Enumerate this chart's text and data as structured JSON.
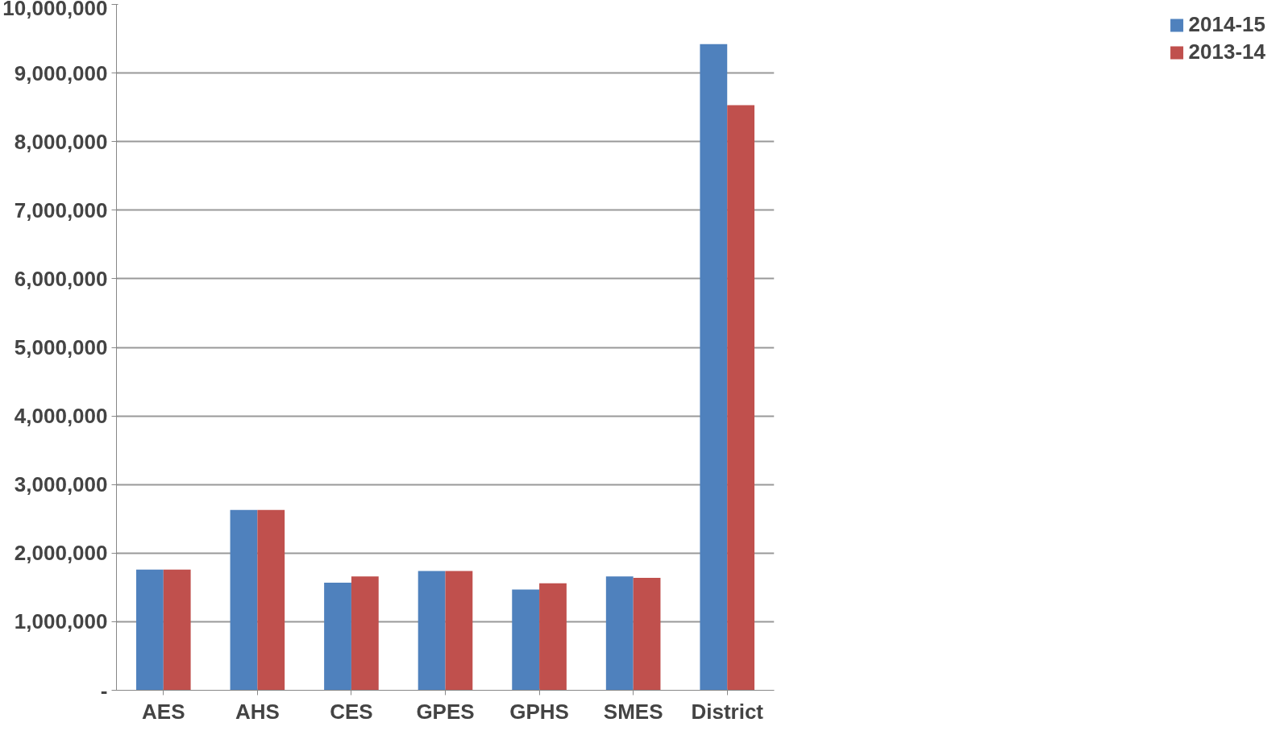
{
  "chart_data": {
    "type": "bar",
    "categories": [
      "AES",
      "AHS",
      "CES",
      "GPES",
      "GPHS",
      "SMES",
      "District"
    ],
    "series": [
      {
        "name": "2014-15",
        "color": "#4f81bd",
        "values": [
          1760000,
          2630000,
          1570000,
          1740000,
          1470000,
          1660000,
          9420000
        ]
      },
      {
        "name": "2013-14",
        "color": "#c0504d",
        "values": [
          1760000,
          2630000,
          1660000,
          1740000,
          1560000,
          1640000,
          8530000
        ]
      }
    ],
    "ylim": [
      0,
      10000000
    ],
    "yticks": [
      {
        "value": 0,
        "label": "-"
      },
      {
        "value": 1000000,
        "label": "1,000,000"
      },
      {
        "value": 2000000,
        "label": "2,000,000"
      },
      {
        "value": 3000000,
        "label": "3,000,000"
      },
      {
        "value": 4000000,
        "label": "4,000,000"
      },
      {
        "value": 5000000,
        "label": "5,000,000"
      },
      {
        "value": 6000000,
        "label": "6,000,000"
      },
      {
        "value": 7000000,
        "label": "7,000,000"
      },
      {
        "value": 8000000,
        "label": "8,000,000"
      },
      {
        "value": 9000000,
        "label": "9,000,000"
      },
      {
        "value": 10000000,
        "label": "10,000,000"
      }
    ],
    "grid": "y",
    "legend": "right"
  }
}
